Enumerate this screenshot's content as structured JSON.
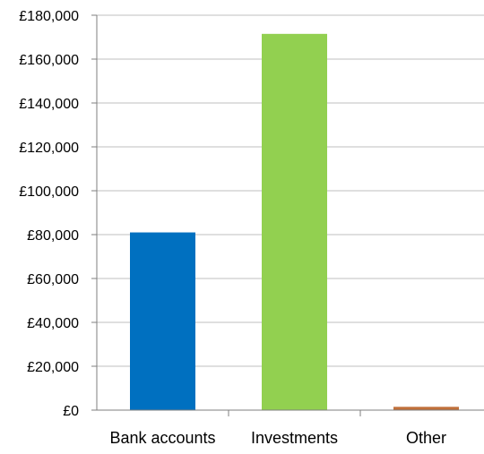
{
  "chart_data": {
    "type": "bar",
    "categories": [
      "Bank accounts",
      "Investments",
      "Other"
    ],
    "values": [
      81000,
      171500,
      1500
    ],
    "colors": [
      "#0070c0",
      "#92d050",
      "#c0703a"
    ],
    "ylim": [
      0,
      180000
    ],
    "yticks": [
      0,
      20000,
      40000,
      60000,
      80000,
      100000,
      120000,
      140000,
      160000,
      180000
    ],
    "ytick_labels": [
      "£0",
      "£20,000",
      "£40,000",
      "£60,000",
      "£80,000",
      "£100,000",
      "£120,000",
      "£140,000",
      "£160,000",
      "£180,000"
    ],
    "grid": true,
    "legend": "none",
    "title": "",
    "xlabel": "",
    "ylabel": ""
  }
}
